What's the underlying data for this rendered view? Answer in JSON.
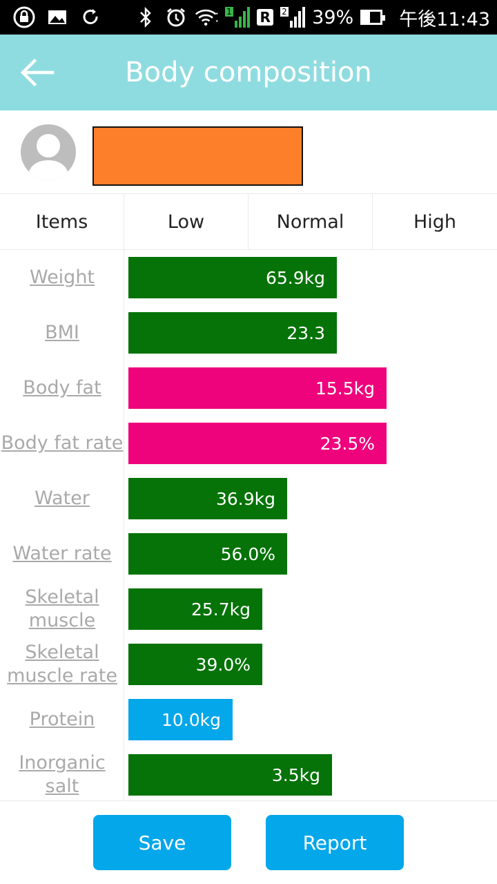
{
  "status_bar": {
    "battery": "39%",
    "time": "午後11:43",
    "roaming_badge": "R",
    "sim1_badge": "1",
    "sim2_badge": "2"
  },
  "app_bar": {
    "title": "Body composition"
  },
  "table": {
    "headers": [
      "Items",
      "Low",
      "Normal",
      "High"
    ],
    "rows": [
      {
        "label": "Weight",
        "value": "65.9kg",
        "level": 0.42,
        "color": "#057307"
      },
      {
        "label": "BMI",
        "value": "23.3",
        "level": 0.42,
        "color": "#057307"
      },
      {
        "label": "Body fat",
        "value": "15.5kg",
        "level": 0.52,
        "color": "#ef037d"
      },
      {
        "label": "Body fat rate",
        "value": "23.5%",
        "level": 0.52,
        "color": "#ef037d"
      },
      {
        "label": "Water",
        "value": "36.9kg",
        "level": 0.32,
        "color": "#057307"
      },
      {
        "label": "Water rate",
        "value": "56.0%",
        "level": 0.32,
        "color": "#057307"
      },
      {
        "label": "Skeletal muscle",
        "value": "25.7kg",
        "level": 0.27,
        "color": "#057307"
      },
      {
        "label": "Skeletal muscle rate",
        "value": "39.0%",
        "level": 0.27,
        "color": "#057307"
      },
      {
        "label": "Protein",
        "value": "10.0kg",
        "level": 0.21,
        "color": "#03a7ea"
      },
      {
        "label": "Inorganic salt",
        "value": "3.5kg",
        "level": 0.41,
        "color": "#057307"
      }
    ]
  },
  "actions": {
    "save_label": "Save",
    "report_label": "Report"
  }
}
